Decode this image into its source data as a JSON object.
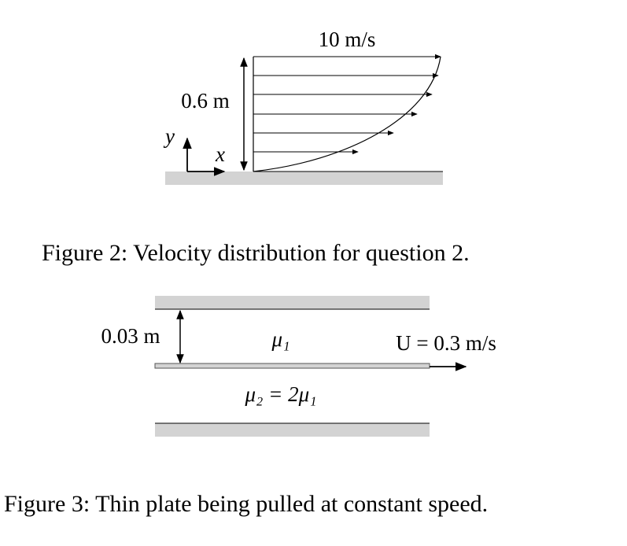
{
  "figure2": {
    "top_velocity": "10 m/s",
    "height": "0.6 m",
    "y_axis": "y",
    "x_axis": "x",
    "caption": "Figure 2: Velocity distribution for question 2."
  },
  "figure3": {
    "gap": "0.03 m",
    "upper_fluid": "μ₁",
    "plate_speed": "U = 0.3 m/s",
    "lower_fluid": "μ₂ = 2μ₁",
    "caption": "Figure 3: Thin plate being pulled at constant speed."
  }
}
